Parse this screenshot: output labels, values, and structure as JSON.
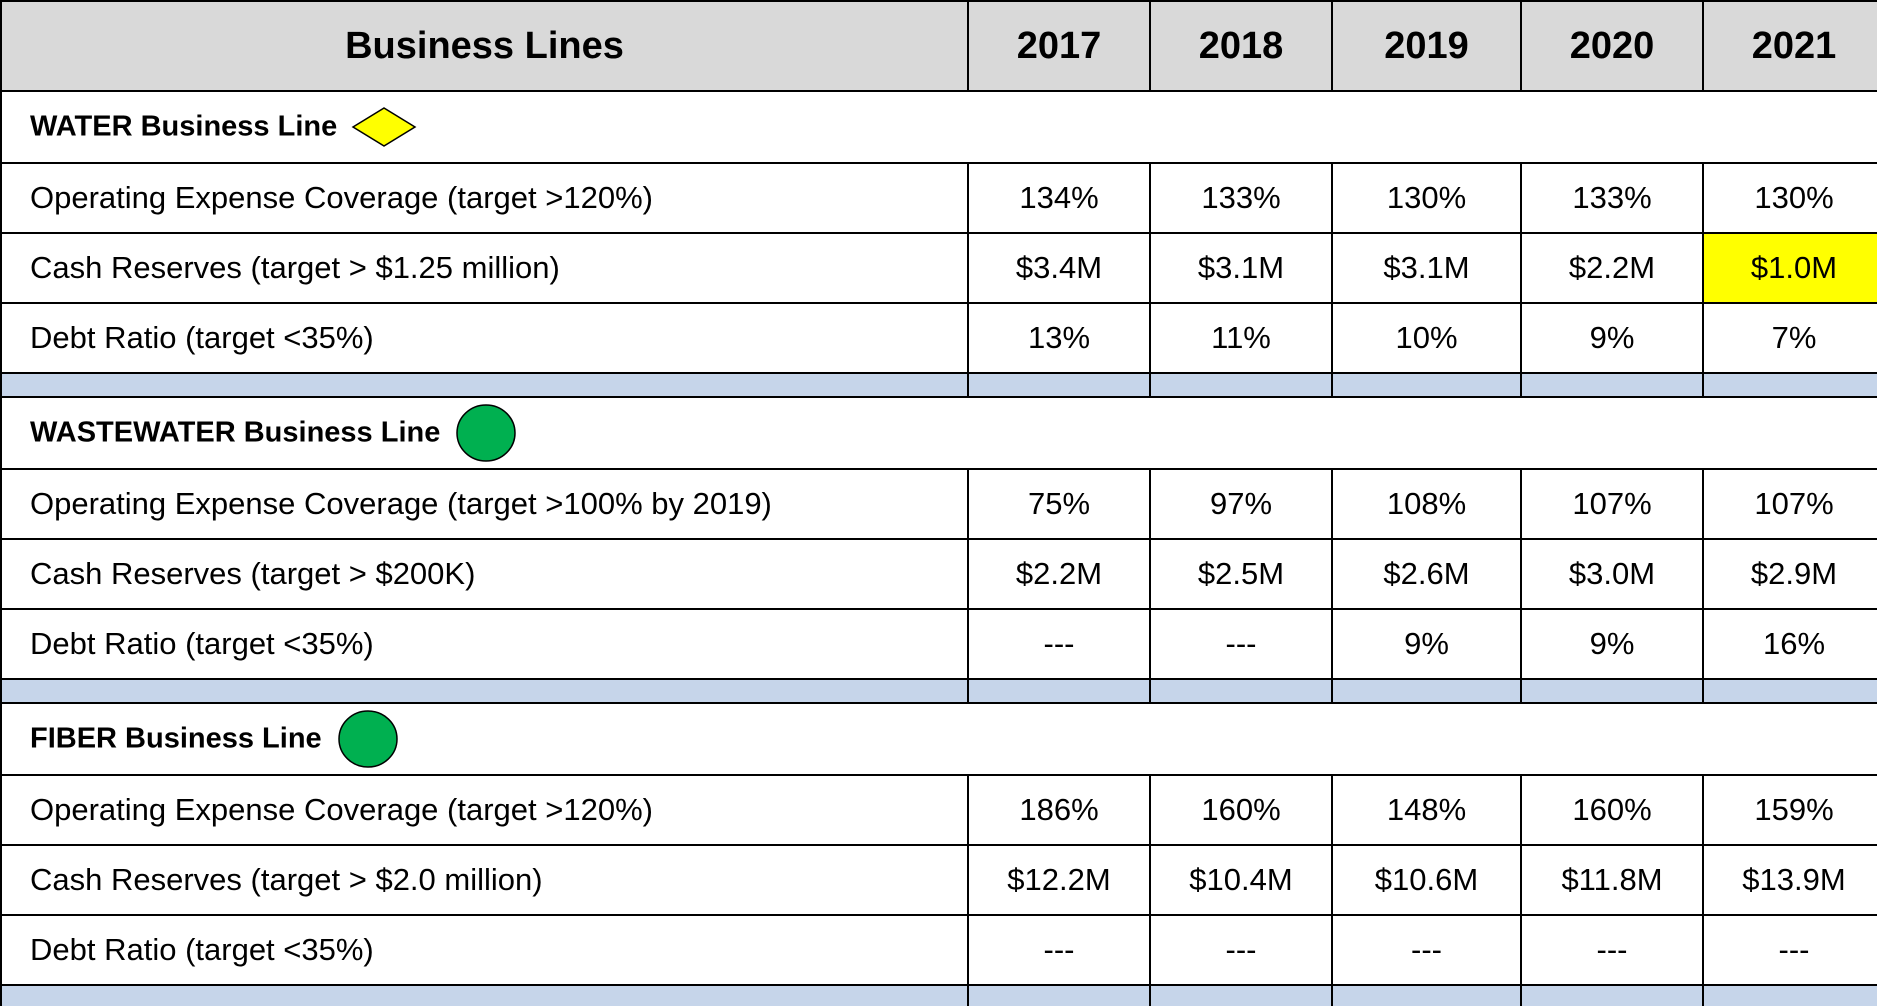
{
  "header": {
    "title": "Business Lines",
    "years": [
      "2017",
      "2018",
      "2019",
      "2020",
      "2021"
    ]
  },
  "sections": [
    {
      "title": "WATER Business Line",
      "marker": {
        "shape": "diamond",
        "color": "#ffff00"
      },
      "rows": [
        {
          "label": "Operating Expense Coverage (target >120%)",
          "values": [
            "134%",
            "133%",
            "130%",
            "133%",
            "130%"
          ]
        },
        {
          "label": "Cash Reserves (target > $1.25 million)",
          "values": [
            "$3.4M",
            "$3.1M",
            "$3.1M",
            "$2.2M",
            "$1.0M"
          ],
          "cell_colors": [
            null,
            null,
            null,
            null,
            "#ffff00"
          ]
        },
        {
          "label": "Debt Ratio (target <35%)",
          "values": [
            "13%",
            "11%",
            "10%",
            "9%",
            "7%"
          ]
        }
      ]
    },
    {
      "title": "WASTEWATER Business Line",
      "marker": {
        "shape": "circle",
        "color": "#00b050"
      },
      "rows": [
        {
          "label": "Operating Expense Coverage (target >100% by 2019)",
          "values": [
            "75%",
            "97%",
            "108%",
            "107%",
            "107%"
          ]
        },
        {
          "label": "Cash Reserves (target > $200K)",
          "values": [
            "$2.2M",
            "$2.5M",
            "$2.6M",
            "$3.0M",
            "$2.9M"
          ]
        },
        {
          "label": "Debt Ratio (target <35%)",
          "values": [
            "---",
            "---",
            "9%",
            "9%",
            "16%"
          ]
        }
      ]
    },
    {
      "title": "FIBER Business Line",
      "marker": {
        "shape": "circle",
        "color": "#00b050"
      },
      "rows": [
        {
          "label": "Operating Expense Coverage (target >120%)",
          "values": [
            "186%",
            "160%",
            "148%",
            "160%",
            "159%"
          ]
        },
        {
          "label": "Cash Reserves (target > $2.0 million)",
          "values": [
            "$12.2M",
            "$10.4M",
            "$10.6M",
            "$11.8M",
            "$13.9M"
          ]
        },
        {
          "label": "Debt Ratio (target <35%)",
          "values": [
            "---",
            "---",
            "---",
            "---",
            "---"
          ]
        }
      ]
    }
  ]
}
